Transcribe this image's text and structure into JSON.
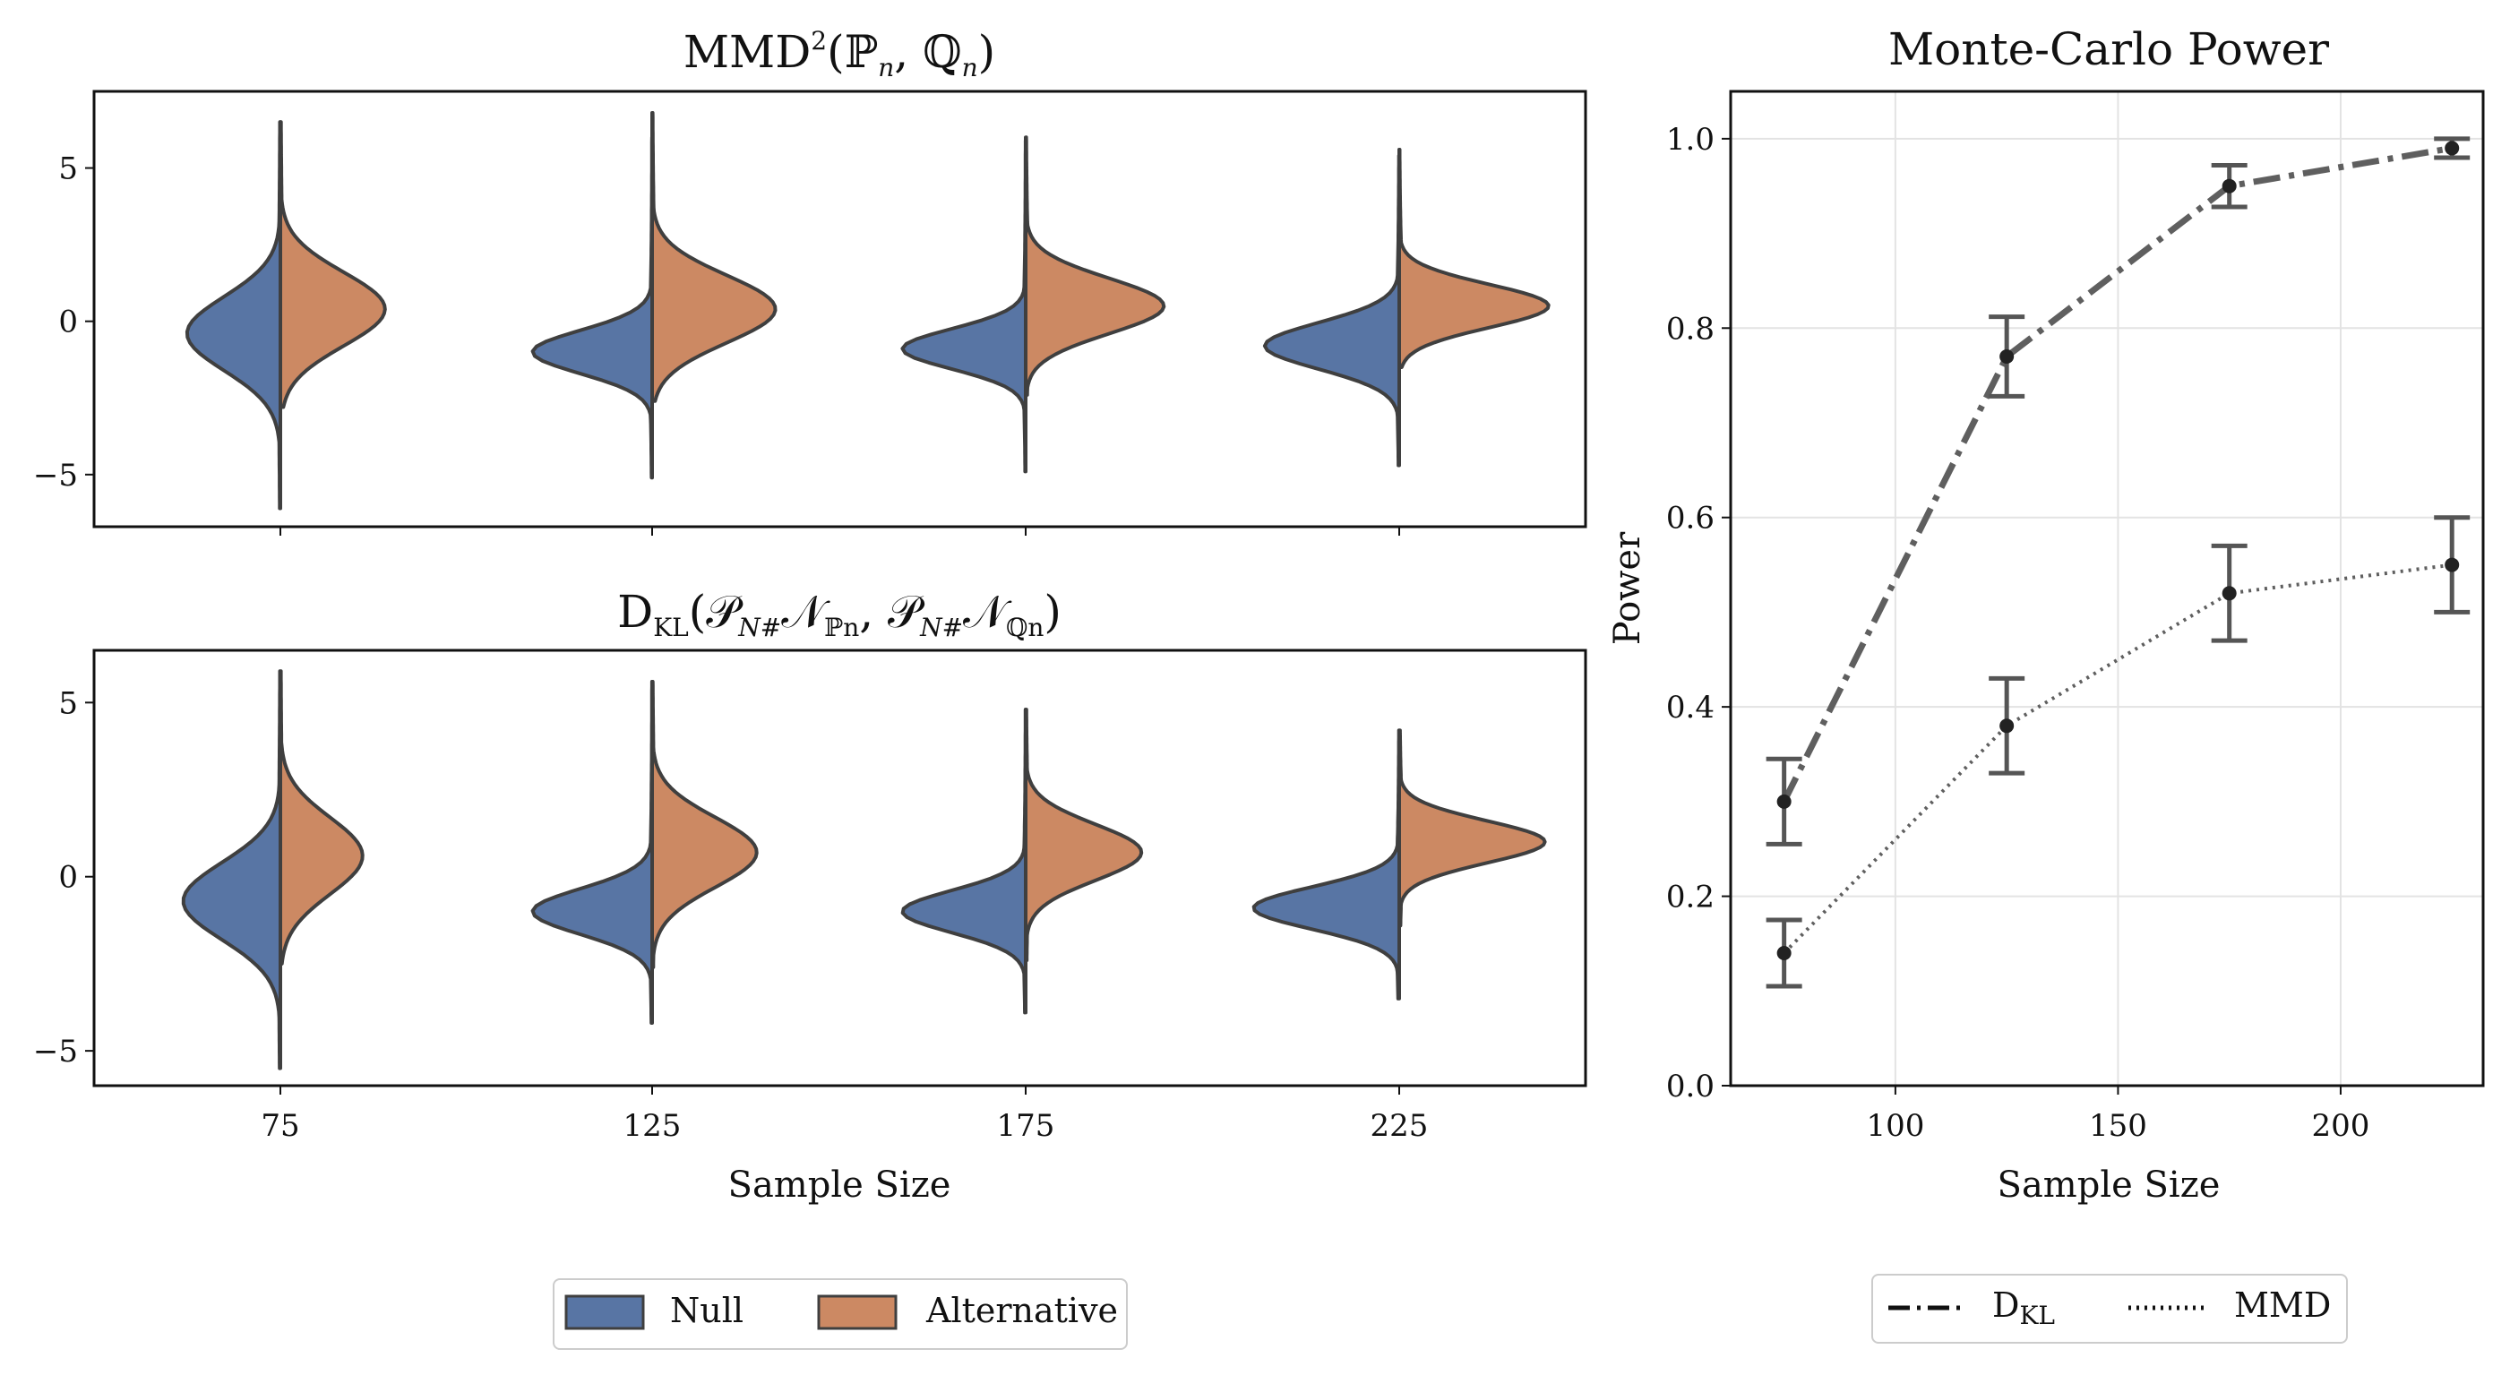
{
  "chart_data": [
    {
      "type": "violin",
      "name": "mmd",
      "title_main": "MMD",
      "title_sup": "2",
      "title_args": "(ℙ",
      "title_sub1": "n",
      "title_mid": ", ℚ",
      "title_sub2": "n",
      "title_end": ")",
      "categories": [
        "75",
        "125",
        "175",
        "225"
      ],
      "ylim": [
        -6.7,
        7.5
      ],
      "yticks": [
        -5,
        0,
        5
      ],
      "ytick_labels": [
        "−5",
        "0",
        "5"
      ],
      "series": [
        {
          "name": "Null",
          "color": "#5875a4",
          "violins": [
            {
              "min": -6.1,
              "max": 6.5,
              "center": -0.4,
              "spread": 1.2,
              "width": 0.25
            },
            {
              "min": -5.1,
              "max": 6.0,
              "center": -1.0,
              "spread": 0.7,
              "width": 0.32
            },
            {
              "min": -4.9,
              "max": 5.9,
              "center": -0.9,
              "spread": 0.65,
              "width": 0.33
            },
            {
              "min": -4.7,
              "max": 5.4,
              "center": -0.8,
              "spread": 0.75,
              "width": 0.36
            }
          ]
        },
        {
          "name": "Alternative",
          "color": "#cc8963",
          "violins": [
            {
              "min": -2.8,
              "max": 6.5,
              "center": 0.4,
              "spread": 1.2,
              "width": 0.28
            },
            {
              "min": -2.6,
              "max": 6.8,
              "center": 0.4,
              "spread": 1.1,
              "width": 0.33
            },
            {
              "min": -2.4,
              "max": 6.0,
              "center": 0.5,
              "spread": 0.9,
              "width": 0.37
            },
            {
              "min": -1.5,
              "max": 5.6,
              "center": 0.5,
              "spread": 0.7,
              "width": 0.4
            }
          ]
        }
      ]
    },
    {
      "type": "violin",
      "name": "dkl",
      "title_main": "D",
      "title_kl": "KL",
      "title_args": "(𝒫",
      "title_sub1": "N#",
      "title_mid": "𝒩",
      "title_sub2": "ℙn",
      "title_sep": ", 𝒫",
      "title_sub3": "N#",
      "title_mid2": "𝒩",
      "title_sub4": "ℚn",
      "title_end": ")",
      "categories": [
        "75",
        "125",
        "175",
        "225"
      ],
      "ylim": [
        -6.0,
        6.5
      ],
      "yticks": [
        -5,
        0,
        5
      ],
      "ytick_labels": [
        "−5",
        "0",
        "5"
      ],
      "series": [
        {
          "name": "Null",
          "color": "#5875a4",
          "violins": [
            {
              "min": -5.5,
              "max": 5.9,
              "center": -0.7,
              "spread": 1.1,
              "width": 0.26
            },
            {
              "min": -4.2,
              "max": 5.6,
              "center": -1.0,
              "spread": 0.65,
              "width": 0.32
            },
            {
              "min": -3.9,
              "max": 4.8,
              "center": -1.0,
              "spread": 0.6,
              "width": 0.33
            },
            {
              "min": -3.5,
              "max": 4.2,
              "center": -0.9,
              "spread": 0.6,
              "width": 0.39
            }
          ]
        },
        {
          "name": "Alternative",
          "color": "#cc8963",
          "violins": [
            {
              "min": -2.5,
              "max": 5.9,
              "center": 0.6,
              "spread": 1.1,
              "width": 0.22
            },
            {
              "min": -2.6,
              "max": 5.6,
              "center": 0.7,
              "spread": 1.0,
              "width": 0.28
            },
            {
              "min": -2.4,
              "max": 4.8,
              "center": 0.7,
              "spread": 0.8,
              "width": 0.31
            },
            {
              "min": -1.4,
              "max": 4.2,
              "center": 1.0,
              "spread": 0.6,
              "width": 0.39
            }
          ]
        }
      ]
    },
    {
      "type": "line",
      "name": "power",
      "title": "Monte-Carlo Power",
      "xlabel": "Sample Size",
      "ylabel": "Power",
      "xlim": [
        63,
        232
      ],
      "ylim": [
        0.0,
        1.05
      ],
      "xticks": [
        100,
        150,
        200
      ],
      "xtick_labels": [
        "100",
        "150",
        "200"
      ],
      "yticks": [
        0.0,
        0.2,
        0.4,
        0.6,
        0.8,
        1.0
      ],
      "ytick_labels": [
        "0.0",
        "0.2",
        "0.4",
        "0.6",
        "0.8",
        "1.0"
      ],
      "grid": true,
      "series": [
        {
          "name": "D_KL",
          "label_main": "D",
          "label_sub": "KL",
          "style": "dashdot",
          "x": [
            75,
            125,
            175,
            225
          ],
          "y": [
            0.3,
            0.77,
            0.95,
            0.99
          ],
          "err": [
            0.045,
            0.042,
            0.022,
            0.01
          ]
        },
        {
          "name": "MMD",
          "label": "MMD",
          "style": "dotted",
          "x": [
            75,
            125,
            175,
            225
          ],
          "y": [
            0.14,
            0.38,
            0.52,
            0.55
          ],
          "err": [
            0.035,
            0.05,
            0.05,
            0.05
          ]
        }
      ]
    }
  ],
  "shared": {
    "xlabel": "Sample Size",
    "legend": [
      {
        "label": "Null",
        "color": "#5875a4"
      },
      {
        "label": "Alternative",
        "color": "#cc8963"
      }
    ]
  }
}
